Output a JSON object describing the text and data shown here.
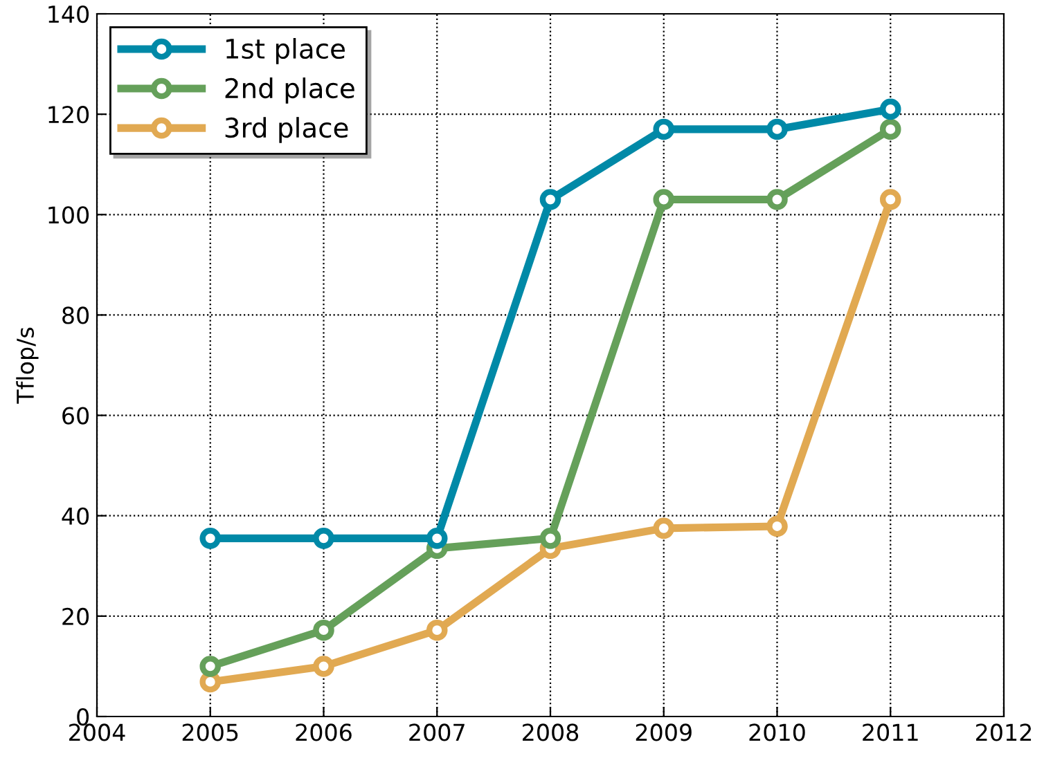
{
  "chart_data": {
    "type": "line",
    "ylabel": "Tflop/s",
    "x": [
      2005,
      2006,
      2007,
      2008,
      2009,
      2010,
      2011
    ],
    "series": [
      {
        "name": "1st place",
        "color": "#0089a7",
        "values": [
          35.5,
          35.5,
          35.5,
          103,
          117,
          117,
          121
        ]
      },
      {
        "name": "2nd place",
        "color": "#65a05a",
        "values": [
          10,
          17.2,
          33.5,
          35.5,
          103,
          103,
          117
        ]
      },
      {
        "name": "3rd place",
        "color": "#e1a952",
        "values": [
          6.9,
          10,
          17.2,
          33.5,
          37.5,
          37.9,
          103
        ]
      }
    ],
    "xlim": [
      2004,
      2012
    ],
    "xticks": [
      2004,
      2005,
      2006,
      2007,
      2008,
      2009,
      2010,
      2011,
      2012
    ],
    "ylim": [
      0,
      140
    ],
    "yticks": [
      0,
      20,
      40,
      60,
      80,
      100,
      120,
      140
    ],
    "grid": true,
    "legend": "top left",
    "marker": "circle",
    "line_style": "solid"
  }
}
